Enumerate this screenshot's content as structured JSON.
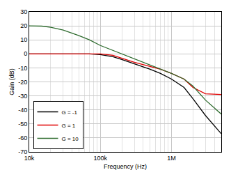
{
  "chart_data": {
    "type": "line",
    "x_label": "Frequency (Hz)",
    "y_label": "Gain (dB)",
    "log": "x",
    "grid": true,
    "legend": "lower left",
    "x": [
      10000,
      15000,
      20000,
      30000,
      50000,
      70000,
      100000,
      150000,
      200000,
      300000,
      500000,
      700000,
      1000000,
      1500000,
      2000000,
      3000000,
      5000000
    ],
    "xlim": [
      10000,
      5000000
    ],
    "xticks": [
      {
        "value": 10000,
        "label": "10k"
      },
      {
        "value": 100000,
        "label": "100k"
      },
      {
        "value": 1000000,
        "label": "1M"
      }
    ],
    "ylim": [
      -70,
      30
    ],
    "yticks": [
      -70,
      -60,
      -50,
      -40,
      -30,
      -20,
      -10,
      0,
      10,
      20,
      30
    ],
    "series": [
      {
        "name": "G = -1",
        "color": "#000000",
        "values": [
          0,
          0,
          0,
          0,
          0,
          0,
          -0.5,
          -2,
          -4,
          -7,
          -11,
          -14,
          -18,
          -24,
          -32,
          -44,
          -57
        ]
      },
      {
        "name": "G = 1",
        "color": "#e00000",
        "values": [
          0,
          0,
          0,
          0,
          0,
          0,
          0,
          -1,
          -3,
          -6,
          -9,
          -11,
          -14,
          -18,
          -24,
          -28.5,
          -29
        ]
      },
      {
        "name": "G = 10",
        "color": "#2e6b2e",
        "values": [
          20,
          19.8,
          19,
          17,
          13,
          10,
          6,
          2.5,
          0,
          -3.5,
          -8,
          -11,
          -14,
          -18,
          -23,
          -33,
          -43
        ]
      }
    ]
  }
}
